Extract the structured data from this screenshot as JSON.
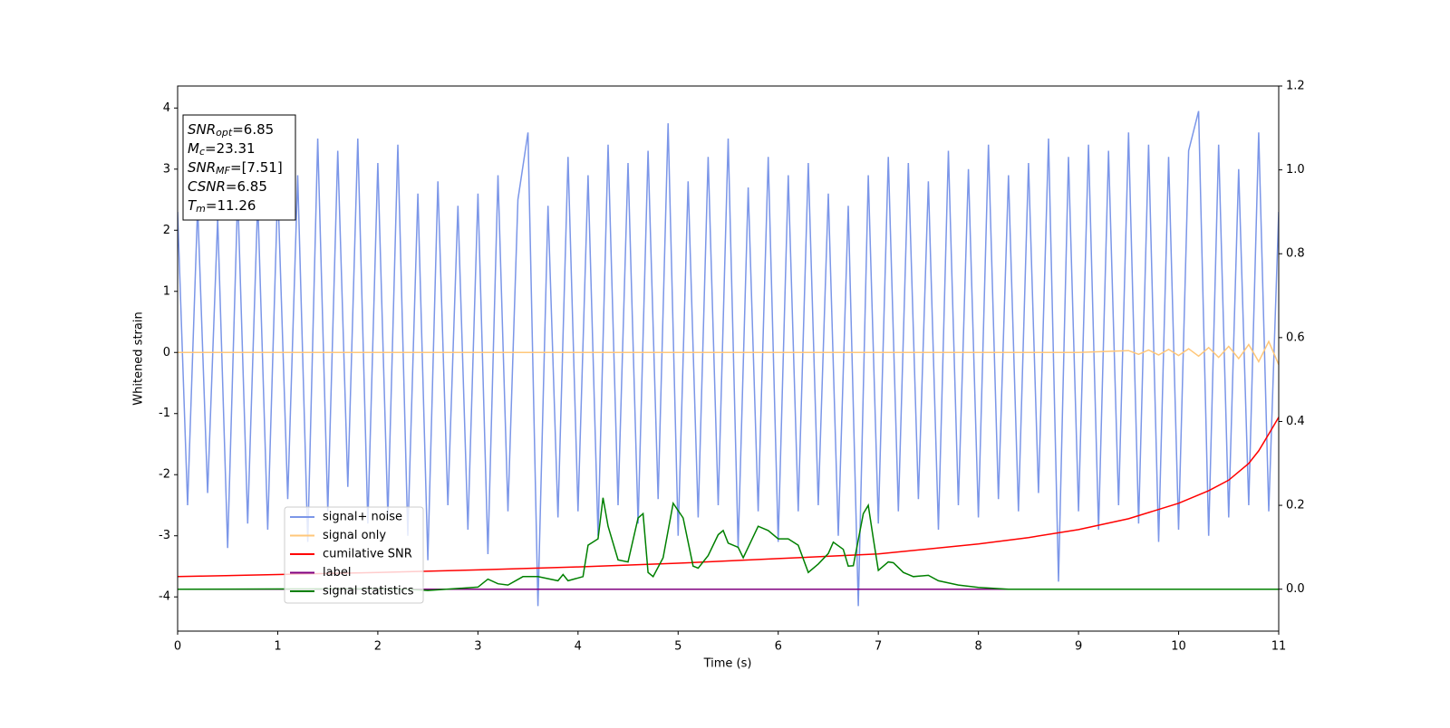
{
  "chart_data": {
    "type": "line",
    "xlabel": "Time (s)",
    "ylabel": "Whitened strain",
    "xlim": [
      0,
      11
    ],
    "xticks": [
      0,
      1,
      2,
      3,
      4,
      5,
      6,
      7,
      8,
      9,
      10,
      11
    ],
    "ylim": [
      -4.56,
      4.36
    ],
    "yticks": [
      -4,
      -3,
      -2,
      -1,
      0,
      1,
      2,
      3,
      4
    ],
    "y2lim": [
      -0.1,
      1.2
    ],
    "y2ticks": [
      {
        "value": 0,
        "label": "0.0"
      },
      0.2,
      0.4,
      0.6,
      0.8,
      {
        "value": 1,
        "label": "1.0"
      },
      1.2
    ],
    "legend": "lower left",
    "annotations": [
      {
        "symbol": "SNR",
        "subscript": "opt",
        "text": "=6.85"
      },
      {
        "symbol": "M",
        "subscript": "c",
        "text": "=23.31"
      },
      {
        "symbol": "SNR",
        "subscript": "MF",
        "text": "=[7.51]"
      },
      {
        "symbol": "CSNR",
        "text": "=6.85"
      },
      {
        "symbol": "T",
        "subscript": "m",
        "text": "=11.26"
      }
    ],
    "series": [
      {
        "name": "signal+ noise",
        "color": "#7b96e8",
        "x": [
          0,
          0.1,
          0.2,
          0.3,
          0.4,
          0.5,
          0.6,
          0.7,
          0.8,
          0.9,
          1,
          1.1,
          1.2,
          1.3,
          1.4,
          1.5,
          1.6,
          1.7,
          1.8,
          1.9,
          2,
          2.1,
          2.2,
          2.3,
          2.4,
          2.5,
          2.6,
          2.7,
          2.8,
          2.9,
          3,
          3.1,
          3.2,
          3.3,
          3.4,
          3.5,
          3.6,
          3.7,
          3.8,
          3.9,
          4,
          4.1,
          4.2,
          4.3,
          4.4,
          4.5,
          4.6,
          4.7,
          4.8,
          4.9,
          5,
          5.1,
          5.2,
          5.3,
          5.4,
          5.5,
          5.6,
          5.7,
          5.8,
          5.9,
          6,
          6.1,
          6.2,
          6.3,
          6.4,
          6.5,
          6.6,
          6.7,
          6.8,
          6.9,
          7,
          7.1,
          7.2,
          7.3,
          7.4,
          7.5,
          7.6,
          7.7,
          7.8,
          7.9,
          8,
          8.1,
          8.2,
          8.3,
          8.4,
          8.5,
          8.6,
          8.7,
          8.8,
          8.9,
          9,
          9.1,
          9.2,
          9.3,
          9.4,
          9.5,
          9.6,
          9.7,
          9.8,
          9.9,
          10,
          10.1,
          10.2,
          10.3,
          10.4,
          10.5,
          10.6,
          10.7,
          10.8,
          10.9,
          11
        ],
        "values": [
          2.3,
          -2.5,
          2.4,
          -2.3,
          2.2,
          -3.2,
          2.6,
          -2.8,
          2.5,
          -2.9,
          2.7,
          -2.4,
          2.9,
          -3.1,
          3.5,
          -2.6,
          3.3,
          -2.2,
          3.5,
          -2.8,
          3.1,
          -2.7,
          3.4,
          -3.0,
          2.6,
          -3.4,
          2.8,
          -2.5,
          2.4,
          -2.9,
          2.6,
          -3.3,
          2.9,
          -2.6,
          2.5,
          3.6,
          -4.15,
          2.4,
          -2.7,
          3.2,
          -2.6,
          2.9,
          -3.0,
          3.4,
          -2.5,
          3.1,
          -2.8,
          3.3,
          -2.4,
          3.75,
          -3.0,
          2.8,
          -2.7,
          3.2,
          -2.5,
          3.5,
          -3.2,
          2.7,
          -2.6,
          3.2,
          -3.1,
          2.9,
          -2.6,
          3.1,
          -2.5,
          2.6,
          -3.0,
          2.4,
          -4.15,
          2.9,
          -2.8,
          3.2,
          -2.6,
          3.1,
          -2.4,
          2.8,
          -2.9,
          3.3,
          -2.5,
          3.0,
          -2.7,
          3.4,
          -2.4,
          2.9,
          -2.6,
          3.1,
          -2.3,
          3.5,
          -3.75,
          3.2,
          -2.6,
          3.4,
          -2.9,
          3.3,
          -2.5,
          3.6,
          -2.8,
          3.4,
          -3.1,
          3.2,
          -2.9,
          3.3,
          3.95,
          -3.0,
          3.4,
          -2.7,
          3.0,
          -2.5,
          3.6,
          -2.6,
          2.3
        ]
      },
      {
        "name": "signal only",
        "color": "#ffc77a",
        "x": [
          0,
          9,
          9.5,
          9.6,
          9.7,
          9.8,
          9.9,
          10,
          10.1,
          10.2,
          10.3,
          10.4,
          10.5,
          10.6,
          10.7,
          10.8,
          10.9,
          11
        ],
        "values": [
          0,
          0,
          0.03,
          -0.03,
          0.04,
          -0.04,
          0.05,
          -0.05,
          0.06,
          -0.06,
          0.08,
          -0.08,
          0.1,
          -0.1,
          0.13,
          -0.15,
          0.18,
          -0.2
        ]
      },
      {
        "name": "cumilative SNR",
        "color": "#ff0000",
        "axis": "y2",
        "x": [
          0,
          1,
          2,
          3,
          4,
          5,
          6,
          7,
          8,
          8.5,
          9,
          9.5,
          10,
          10.3,
          10.5,
          10.7,
          10.8,
          10.9,
          11
        ],
        "values": [
          0.03,
          0.035,
          0.04,
          0.046,
          0.053,
          0.062,
          0.073,
          0.084,
          0.108,
          0.123,
          0.142,
          0.168,
          0.205,
          0.235,
          0.26,
          0.3,
          0.33,
          0.37,
          0.41
        ]
      },
      {
        "name": "label",
        "color": "#800080",
        "axis": "y2",
        "x": [
          0,
          11
        ],
        "values": [
          0,
          0
        ]
      },
      {
        "name": "signal statistics",
        "color": "#008000",
        "axis": "y2",
        "x": [
          0,
          2,
          2.3,
          2.5,
          3,
          3.1,
          3.2,
          3.3,
          3.45,
          3.6,
          3.8,
          3.85,
          3.9,
          4.05,
          4.1,
          4.2,
          4.25,
          4.3,
          4.4,
          4.5,
          4.6,
          4.65,
          4.7,
          4.75,
          4.85,
          4.95,
          5.05,
          5.15,
          5.2,
          5.3,
          5.4,
          5.45,
          5.5,
          5.6,
          5.65,
          5.7,
          5.8,
          5.9,
          6,
          6.1,
          6.2,
          6.3,
          6.4,
          6.5,
          6.55,
          6.65,
          6.7,
          6.75,
          6.85,
          6.9,
          6.95,
          7,
          7.1,
          7.15,
          7.25,
          7.35,
          7.5,
          7.6,
          7.8,
          8,
          8.3,
          11
        ],
        "values": [
          0,
          0.001,
          0,
          -0.003,
          0.005,
          0.024,
          0.013,
          0.01,
          0.03,
          0.03,
          0.02,
          0.035,
          0.02,
          0.03,
          0.105,
          0.12,
          0.218,
          0.15,
          0.07,
          0.065,
          0.17,
          0.18,
          0.04,
          0.03,
          0.075,
          0.205,
          0.17,
          0.055,
          0.05,
          0.08,
          0.13,
          0.14,
          0.11,
          0.1,
          0.075,
          0.1,
          0.15,
          0.14,
          0.12,
          0.12,
          0.105,
          0.04,
          0.06,
          0.085,
          0.112,
          0.095,
          0.055,
          0.056,
          0.18,
          0.2,
          0.12,
          0.045,
          0.065,
          0.063,
          0.04,
          0.03,
          0.033,
          0.02,
          0.01,
          0.004,
          0,
          0
        ]
      }
    ]
  }
}
